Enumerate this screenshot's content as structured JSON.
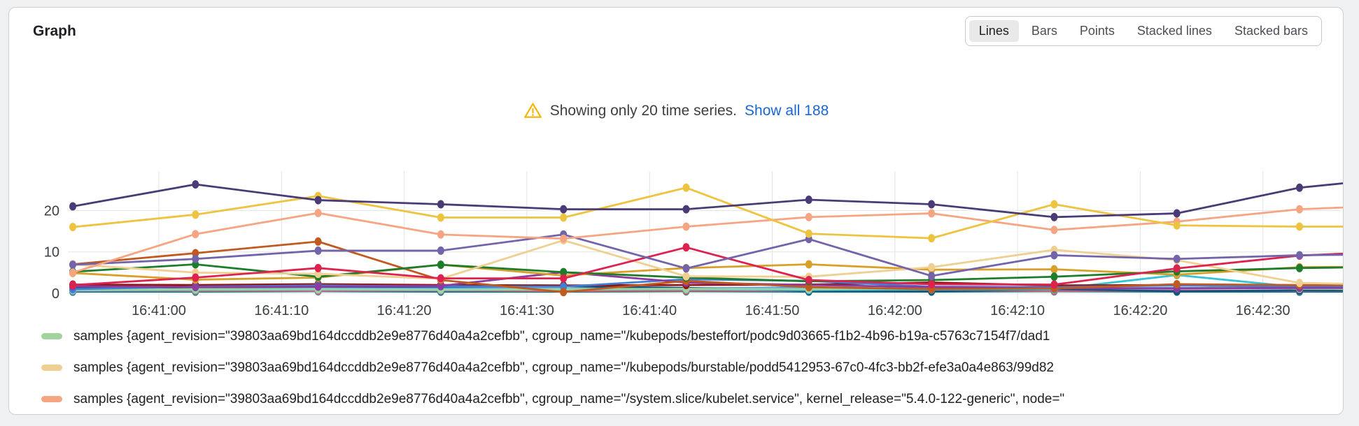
{
  "header": {
    "title": "Graph"
  },
  "toolbar": {
    "options": [
      "Lines",
      "Bars",
      "Points",
      "Stacked lines",
      "Stacked bars"
    ],
    "active": "Lines"
  },
  "warning": {
    "icon": "warning-triangle",
    "text": "Showing only 20 time series.",
    "link_label": "Show all 188"
  },
  "legend": {
    "items": [
      {
        "color": "#a3d39c",
        "label": "samples {agent_revision=\"39803aa69bd164dccddb2e9e8776d40a4a2cefbb\", cgroup_name=\"/kubepods/besteffort/podc9d03665-f1b2-4b96-b19a-c5763c7154f7/dad1"
      },
      {
        "color": "#f0cf92",
        "label": "samples {agent_revision=\"39803aa69bd164dccddb2e9e8776d40a4a2cefbb\", cgroup_name=\"/kubepods/burstable/podd5412953-67c0-4fc3-bb2f-efe3a0a4e863/99d82"
      },
      {
        "color": "#f6a583",
        "label": "samples {agent_revision=\"39803aa69bd164dccddb2e9e8776d40a4a2cefbb\", cgroup_name=\"/system.slice/kubelet.service\", kernel_release=\"5.4.0-122-generic\", node=\""
      }
    ]
  },
  "chart_data": {
    "type": "line",
    "title": "",
    "xlabel": "",
    "ylabel": "",
    "grid": true,
    "ylim": [
      0,
      29.5
    ],
    "y_ticks": [
      0,
      10,
      20
    ],
    "x_tick_labels": [
      "16:41:00",
      "16:41:10",
      "16:41:20",
      "16:41:30",
      "16:41:40",
      "16:41:50",
      "16:42:00",
      "16:42:10",
      "16:42:20",
      "16:42:30"
    ],
    "x_times": [
      "16:40:53",
      "16:41:03",
      "16:41:13",
      "16:41:23",
      "16:41:33",
      "16:41:43",
      "16:41:53",
      "16:42:03",
      "16:42:13",
      "16:42:23",
      "16:42:33"
    ],
    "series": [
      {
        "color": "#a3d39c",
        "values": [
          0.8,
          1.0,
          1.0,
          0.9,
          1.0,
          1.1,
          1.0,
          1.2,
          1.7,
          2.0,
          1.1
        ],
        "edge_value": 1.0
      },
      {
        "color": "#f0cf92",
        "values": [
          7.0,
          5.0,
          4.7,
          3.5,
          12.8,
          4.1,
          4.0,
          6.3,
          10.5,
          8.0,
          2.5
        ],
        "edge_value": 2.0
      },
      {
        "color": "#f6a583",
        "values": [
          5.0,
          14.3,
          19.4,
          14.2,
          13.2,
          16.1,
          18.4,
          19.3,
          15.3,
          17.3,
          20.3
        ],
        "edge_value": 21.5
      },
      {
        "color": "#4a3b76",
        "values": [
          21.0,
          26.3,
          22.5,
          21.5,
          20.3,
          20.3,
          22.6,
          21.5,
          18.4,
          19.3,
          25.5
        ],
        "edge_value": 28.5
      },
      {
        "color": "#eec33e",
        "values": [
          16.0,
          19.0,
          23.5,
          18.3,
          18.3,
          25.5,
          14.4,
          13.3,
          21.5,
          16.4,
          16.1
        ],
        "edge_value": 16.1
      },
      {
        "color": "#7263ab",
        "values": [
          6.9,
          8.3,
          10.3,
          10.3,
          14.2,
          6.0,
          13.1,
          4.2,
          9.2,
          8.3,
          9.2
        ],
        "edge_value": 9.5
      },
      {
        "color": "#dc2350",
        "values": [
          2.0,
          3.8,
          6.1,
          3.6,
          3.6,
          11.1,
          3.2,
          2.2,
          2.1,
          6.0,
          9.1
        ],
        "edge_value": 10.5
      },
      {
        "color": "#1e7d2c",
        "values": [
          5.2,
          7.0,
          4.0,
          6.9,
          5.1,
          3.8,
          2.9,
          3.2,
          4.0,
          5.3,
          6.1
        ],
        "edge_value": 6.5
      },
      {
        "color": "#c05a1e",
        "values": [
          7.0,
          9.7,
          12.5,
          3.2,
          0.3,
          3.0,
          1.5,
          1.0,
          1.2,
          2.2,
          2.0
        ],
        "edge_value": 2.0
      },
      {
        "color": "#d8a028",
        "values": [
          4.9,
          3.3,
          3.8,
          6.9,
          4.3,
          6.1,
          7.0,
          5.7,
          5.8,
          4.5,
          6.3
        ],
        "edge_value": 6.5
      },
      {
        "color": "#8e1616",
        "values": [
          2.1,
          2.0,
          2.2,
          2.0,
          1.9,
          2.0,
          2.1,
          2.6,
          1.9,
          2.0,
          1.8
        ],
        "edge_value": 1.8
      },
      {
        "color": "#3f7fd4",
        "values": [
          1.0,
          1.6,
          1.9,
          1.7,
          1.6,
          3.4,
          3.0,
          1.6,
          1.5,
          1.9,
          1.6
        ],
        "edge_value": 1.6
      },
      {
        "color": "#4da3f5",
        "values": [
          0.9,
          1.2,
          1.3,
          1.2,
          1.1,
          1.2,
          1.4,
          1.1,
          1.2,
          1.3,
          1.2
        ],
        "edge_value": 1.2
      },
      {
        "color": "#14537d",
        "values": [
          1.5,
          1.4,
          1.6,
          1.6,
          1.7,
          1.3,
          0.6,
          0.5,
          1.0,
          0.5,
          0.7
        ],
        "edge_value": 0.7
      },
      {
        "color": "#8c3b9e",
        "values": [
          1.7,
          1.5,
          1.6,
          1.8,
          5.1,
          2.6,
          2.0,
          1.5,
          1.2,
          1.2,
          1.3
        ],
        "edge_value": 1.3
      },
      {
        "color": "#35c4d7",
        "values": [
          0.7,
          0.8,
          0.9,
          0.8,
          0.9,
          1.0,
          0.8,
          0.9,
          1.0,
          4.4,
          1.5
        ],
        "edge_value": 1.0
      },
      {
        "color": "#8a8f3c",
        "values": [
          0.5,
          0.5,
          0.6,
          0.5,
          0.5,
          0.6,
          0.5,
          0.6,
          0.5,
          0.5,
          0.6
        ],
        "edge_value": 0.6
      },
      {
        "color": "#0b7285",
        "values": [
          0.4,
          0.4,
          0.5,
          0.4,
          0.4,
          0.5,
          0.4,
          0.4,
          0.5,
          0.4,
          0.4
        ],
        "edge_value": 0.4
      },
      {
        "color": "#b06ad0",
        "values": [
          0.6,
          0.7,
          0.6,
          0.7,
          0.6,
          0.7,
          0.6,
          0.7,
          0.6,
          0.7,
          0.6
        ],
        "edge_value": 0.7
      },
      {
        "color": "#e06666",
        "values": [
          0.7,
          0.6,
          0.7,
          0.7,
          0.6,
          0.7,
          0.7,
          0.6,
          0.7,
          0.6,
          0.7
        ],
        "edge_value": 0.7
      }
    ]
  }
}
